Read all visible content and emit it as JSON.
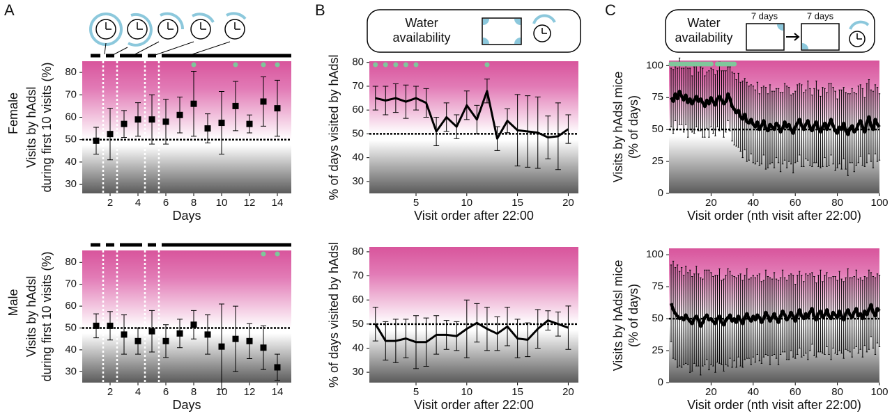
{
  "panels": [
    "A",
    "B",
    "C"
  ],
  "header_b": [
    "Water",
    "availability"
  ],
  "header_c": {
    "text": [
      "Water",
      "availability"
    ],
    "first": "7 days",
    "second": "7 days"
  },
  "chart_data": [
    {
      "type": "scatter",
      "group": "Female",
      "ylabel": [
        "Visits by hAdsl",
        "during first 10 visits (%)"
      ],
      "xlabel": "Days",
      "x": [
        1,
        2,
        3,
        4,
        5,
        6,
        7,
        8,
        9,
        10,
        11,
        12,
        13,
        14
      ],
      "values": [
        49.5,
        52.5,
        57,
        59,
        59,
        58,
        61,
        66,
        55,
        57.5,
        65,
        57,
        67,
        64
      ],
      "errors": [
        6,
        11.5,
        6,
        7.5,
        11,
        10,
        8,
        14.5,
        6.5,
        14,
        11,
        4,
        11,
        12.5
      ],
      "color": "#000000",
      "xlim": [
        0,
        15
      ],
      "ylim": [
        26,
        85
      ],
      "xticks": [
        2,
        4,
        6,
        8,
        10,
        12,
        14
      ],
      "yticks": [
        30,
        40,
        50,
        60,
        70,
        80
      ],
      "reference": 50,
      "significant_x": [
        8,
        11,
        13,
        14
      ],
      "separators": [
        1.5,
        2.5,
        4.5,
        5.5
      ]
    },
    {
      "type": "line",
      "ylabel": [
        "% of days visited by hAdsl"
      ],
      "xlabel": "Visit order after 22:00",
      "x": [
        1,
        2,
        3,
        4,
        5,
        6,
        7,
        8,
        9,
        10,
        11,
        12,
        13,
        14,
        15,
        16,
        17,
        18,
        19,
        20
      ],
      "values": [
        65,
        64,
        65,
        63.5,
        65,
        63,
        51,
        57,
        53,
        62,
        56,
        68,
        48,
        55.5,
        51.5,
        51,
        50.5,
        48.5,
        49,
        52
      ],
      "errors": [
        5,
        6,
        6,
        7,
        5,
        6,
        6,
        6,
        5,
        6,
        6,
        5,
        5,
        5,
        15,
        15,
        15,
        9,
        14,
        6
      ],
      "color": "#000000",
      "xlim": [
        0.4,
        21
      ],
      "ylim": [
        25,
        80.5
      ],
      "xticks": [
        5,
        10,
        15,
        20
      ],
      "yticks": [
        30,
        40,
        50,
        60,
        70,
        80
      ],
      "reference": 50,
      "significant_x": [
        1,
        2,
        3,
        4,
        5,
        12
      ]
    },
    {
      "type": "line",
      "ylabel": [
        "Visits by hAdsl mice",
        "(% of days)"
      ],
      "xlabel": "Visit order (nth visit after 22:00)",
      "x": [
        1,
        2,
        3,
        4,
        5,
        6,
        7,
        8,
        9,
        10,
        11,
        12,
        13,
        14,
        15,
        16,
        17,
        18,
        19,
        20,
        21,
        22,
        23,
        24,
        25,
        26,
        27,
        28,
        29,
        30,
        31,
        32,
        33,
        34,
        35,
        36,
        37,
        38,
        39,
        40,
        41,
        42,
        43,
        44,
        45,
        46,
        47,
        48,
        49,
        50,
        51,
        52,
        53,
        54,
        55,
        56,
        57,
        58,
        59,
        60,
        61,
        62,
        63,
        64,
        65,
        66,
        67,
        68,
        69,
        70,
        71,
        72,
        73,
        74,
        75,
        76,
        77,
        78,
        79,
        80,
        81,
        82,
        83,
        84,
        85,
        86,
        87,
        88,
        89,
        90,
        91,
        92,
        93,
        94,
        95,
        96,
        97,
        98,
        99,
        100
      ],
      "values": [
        75,
        72,
        78,
        74,
        80,
        76,
        73,
        77,
        71,
        74,
        70,
        73,
        76,
        72,
        74,
        71,
        68,
        73,
        70,
        75,
        72,
        69,
        74,
        76,
        73,
        70,
        72,
        78,
        74,
        68,
        66,
        63,
        65,
        60,
        58,
        62,
        56,
        55,
        58,
        54,
        52,
        56,
        50,
        53,
        57,
        51,
        49,
        54,
        52,
        50,
        55,
        53,
        48,
        51,
        56,
        52,
        54,
        50,
        47,
        52,
        55,
        58,
        53,
        50,
        54,
        57,
        52,
        49,
        53,
        56,
        51,
        48,
        52,
        55,
        50,
        54,
        58,
        53,
        49,
        47,
        52,
        50,
        55,
        49,
        46,
        51,
        53,
        48,
        50,
        54,
        57,
        52,
        48,
        55,
        60,
        53,
        50,
        58,
        54,
        52
      ],
      "errors": [
        23,
        25,
        21,
        24,
        26,
        22,
        25,
        23,
        27,
        24,
        22,
        26,
        24,
        23,
        25,
        27,
        24,
        22,
        26,
        23,
        25,
        24,
        22,
        27,
        23,
        26,
        24,
        21,
        25,
        27,
        28,
        26,
        29,
        27,
        30,
        28,
        31,
        29,
        27,
        30,
        29,
        31,
        28,
        30,
        27,
        32,
        29,
        31,
        28,
        30,
        27,
        29,
        31,
        28,
        30,
        32,
        29,
        27,
        31,
        28,
        30,
        28,
        32,
        29,
        27,
        31,
        30,
        28,
        29,
        32,
        30,
        28,
        31,
        27,
        29,
        32,
        28,
        30,
        31,
        27,
        29,
        31,
        28,
        30,
        32,
        27,
        29,
        31,
        28,
        30,
        28,
        30,
        27,
        31,
        29,
        28,
        30,
        27,
        29,
        26
      ],
      "color": "#000000",
      "xlim": [
        0,
        100
      ],
      "ylim": [
        0,
        104
      ],
      "xticks": [
        20,
        40,
        60,
        80,
        100
      ],
      "yticks": [
        0,
        25,
        50,
        75,
        100
      ],
      "reference": 50,
      "significant_x": [
        1,
        2,
        3,
        4,
        5,
        6,
        7,
        8,
        9,
        10,
        11,
        12,
        13,
        14,
        15,
        16,
        17,
        18,
        19,
        20,
        23,
        24,
        25,
        26,
        27,
        28,
        29,
        30,
        31
      ]
    },
    {
      "type": "scatter",
      "group": "Male",
      "ylabel": [
        "Visits by hAdsl",
        "during first 10 visits (%)"
      ],
      "xlabel": "Days",
      "x": [
        1,
        2,
        3,
        4,
        5,
        6,
        7,
        8,
        9,
        10,
        11,
        12,
        13,
        14
      ],
      "values": [
        51,
        51,
        47,
        44,
        48.5,
        44,
        47.5,
        51.5,
        47,
        41.5,
        45,
        44,
        41,
        32
      ],
      "errors": [
        5.5,
        6.5,
        9,
        6,
        9.5,
        7.5,
        6.5,
        6.5,
        9,
        19.5,
        15,
        8,
        10,
        6
      ],
      "color": "#000000",
      "xlim": [
        0,
        15
      ],
      "ylim": [
        25,
        85.5
      ],
      "xticks": [
        2,
        4,
        6,
        8,
        10,
        12,
        14
      ],
      "yticks": [
        30,
        40,
        50,
        60,
        70,
        80
      ],
      "reference": 50,
      "significant_x": [
        13,
        14
      ],
      "separators": [
        1.5,
        2.5,
        4.5,
        5.5
      ]
    },
    {
      "type": "line",
      "ylabel": [
        "% of days visited by hAdsl"
      ],
      "xlabel": "Visit order after 22:00",
      "x": [
        1,
        2,
        3,
        4,
        5,
        6,
        7,
        8,
        9,
        10,
        11,
        12,
        13,
        14,
        15,
        16,
        17,
        18,
        19,
        20
      ],
      "values": [
        50,
        43,
        43,
        44,
        42.5,
        42.5,
        45.5,
        45.5,
        45,
        48,
        50.5,
        48,
        46,
        49,
        44,
        43.5,
        48,
        51.5,
        50,
        48.5
      ],
      "errors": [
        7,
        8,
        9,
        8,
        11,
        10,
        8,
        6,
        6,
        12,
        8,
        9,
        7,
        8,
        8,
        7,
        8,
        4,
        5,
        9
      ],
      "color": "#000000",
      "xlim": [
        0.4,
        21
      ],
      "ylim": [
        25.7,
        82
      ],
      "xticks": [
        5,
        10,
        15,
        20
      ],
      "yticks": [
        30,
        40,
        50,
        60,
        70,
        80
      ],
      "reference": 50
    },
    {
      "type": "line",
      "ylabel": [
        "Visits by hAdsl mice",
        "(% of days)"
      ],
      "xlabel": "Visit order (nth visit after 22:00)",
      "x": [
        1,
        2,
        3,
        4,
        5,
        6,
        7,
        8,
        9,
        10,
        11,
        12,
        13,
        14,
        15,
        16,
        17,
        18,
        19,
        20,
        21,
        22,
        23,
        24,
        25,
        26,
        27,
        28,
        29,
        30,
        31,
        32,
        33,
        34,
        35,
        36,
        37,
        38,
        39,
        40,
        41,
        42,
        43,
        44,
        45,
        46,
        47,
        48,
        49,
        50,
        51,
        52,
        53,
        54,
        55,
        56,
        57,
        58,
        59,
        60,
        61,
        62,
        63,
        64,
        65,
        66,
        67,
        68,
        69,
        70,
        71,
        72,
        73,
        74,
        75,
        76,
        77,
        78,
        79,
        80,
        81,
        82,
        83,
        84,
        85,
        86,
        87,
        88,
        89,
        90,
        91,
        92,
        93,
        94,
        95,
        96,
        97,
        98,
        99,
        100
      ],
      "values": [
        62,
        57,
        54,
        52,
        50,
        51,
        49,
        53,
        50,
        48,
        46,
        50,
        52,
        49,
        44,
        47,
        51,
        53,
        49,
        50,
        48,
        46,
        50,
        52,
        47,
        45,
        49,
        51,
        53,
        48,
        50,
        47,
        52,
        49,
        46,
        51,
        54,
        50,
        48,
        52,
        49,
        53,
        51,
        47,
        50,
        55,
        52,
        48,
        51,
        54,
        50,
        47,
        52,
        56,
        53,
        49,
        51,
        55,
        52,
        48,
        53,
        57,
        52,
        50,
        54,
        51,
        55,
        58,
        52,
        49,
        54,
        56,
        51,
        53,
        57,
        52,
        50,
        55,
        53,
        51,
        56,
        52,
        49,
        54,
        57,
        53,
        51,
        55,
        58,
        52,
        54,
        50,
        56,
        53,
        57,
        61,
        55,
        52,
        58,
        56
      ],
      "errors": [
        30,
        38,
        36,
        40,
        37,
        39,
        35,
        38,
        36,
        40,
        37,
        35,
        39,
        36,
        38,
        34,
        37,
        35,
        39,
        36,
        35,
        38,
        34,
        37,
        33,
        36,
        35,
        38,
        34,
        36,
        33,
        35,
        32,
        36,
        34,
        33,
        35,
        31,
        34,
        32,
        33,
        31,
        34,
        32,
        30,
        33,
        31,
        34,
        30,
        32,
        31,
        33,
        30,
        32,
        29,
        31,
        33,
        30,
        32,
        29,
        31,
        30,
        32,
        29,
        31,
        33,
        30,
        28,
        31,
        29,
        30,
        32,
        28,
        31,
        29,
        30,
        32,
        28,
        30,
        29,
        31,
        29,
        30,
        28,
        32,
        29,
        31,
        28,
        30,
        29,
        28,
        30,
        27,
        29,
        31,
        25,
        28,
        30,
        27,
        28
      ],
      "color": "#000000",
      "xlim": [
        0,
        100
      ],
      "ylim": [
        0,
        105
      ],
      "xticks": [
        20,
        40,
        60,
        80,
        100
      ],
      "yticks": [
        0,
        25,
        50,
        75,
        100
      ],
      "reference": 50
    }
  ]
}
